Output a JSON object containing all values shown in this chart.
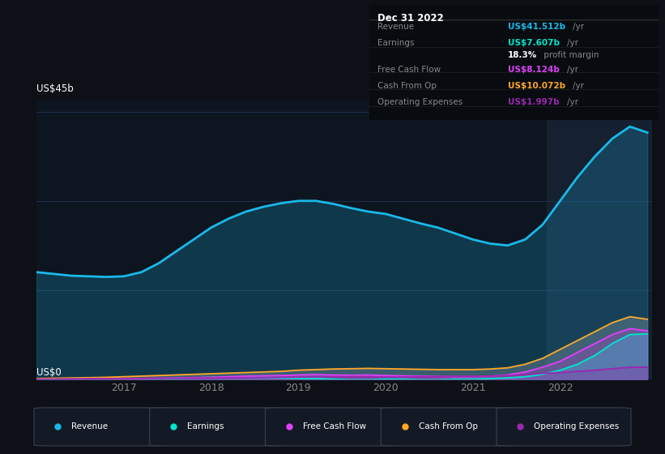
{
  "background_color": "#0d1117",
  "chart_bg_color": "#0d1520",
  "ylabel": "US$45b",
  "y0label": "US$0",
  "x_ticks": [
    "2017",
    "2018",
    "2019",
    "2020",
    "2021",
    "2022"
  ],
  "x_values": [
    2016.0,
    2016.2,
    2016.4,
    2016.6,
    2016.8,
    2017.0,
    2017.2,
    2017.4,
    2017.6,
    2017.8,
    2018.0,
    2018.2,
    2018.4,
    2018.6,
    2018.8,
    2019.0,
    2019.2,
    2019.4,
    2019.6,
    2019.8,
    2020.0,
    2020.2,
    2020.4,
    2020.6,
    2020.8,
    2021.0,
    2021.2,
    2021.4,
    2021.6,
    2021.8,
    2022.0,
    2022.2,
    2022.4,
    2022.6,
    2022.8,
    2023.0
  ],
  "revenue": [
    18.0,
    17.7,
    17.4,
    17.3,
    17.2,
    17.3,
    18.0,
    19.5,
    21.5,
    23.5,
    25.5,
    27.0,
    28.2,
    29.0,
    29.6,
    30.0,
    30.0,
    29.5,
    28.8,
    28.2,
    27.8,
    27.0,
    26.2,
    25.5,
    24.5,
    23.5,
    22.8,
    22.5,
    23.5,
    26.0,
    30.0,
    34.0,
    37.5,
    40.5,
    42.5,
    41.5
  ],
  "earnings": [
    -0.5,
    -0.4,
    -0.4,
    -0.3,
    -0.2,
    -0.1,
    0.0,
    0.1,
    0.1,
    0.2,
    0.3,
    0.3,
    0.3,
    0.3,
    0.2,
    0.1,
    0.1,
    0.0,
    -0.1,
    -0.1,
    0.0,
    0.0,
    -0.1,
    -0.1,
    0.0,
    0.0,
    0.1,
    0.2,
    0.4,
    0.8,
    1.5,
    2.5,
    4.0,
    6.0,
    7.5,
    7.607
  ],
  "free_cash_flow": [
    -0.3,
    -0.25,
    -0.2,
    -0.15,
    -0.1,
    0.0,
    0.1,
    0.15,
    0.2,
    0.25,
    0.3,
    0.4,
    0.5,
    0.55,
    0.6,
    0.7,
    0.75,
    0.7,
    0.65,
    0.7,
    0.6,
    0.55,
    0.5,
    0.45,
    0.4,
    0.4,
    0.5,
    0.7,
    1.2,
    2.0,
    3.0,
    4.5,
    6.0,
    7.5,
    8.5,
    8.124
  ],
  "cash_from_op": [
    0.1,
    0.15,
    0.2,
    0.25,
    0.3,
    0.4,
    0.5,
    0.6,
    0.7,
    0.8,
    0.9,
    1.0,
    1.1,
    1.2,
    1.3,
    1.5,
    1.6,
    1.7,
    1.75,
    1.8,
    1.75,
    1.7,
    1.65,
    1.6,
    1.6,
    1.6,
    1.7,
    1.9,
    2.5,
    3.5,
    5.0,
    6.5,
    8.0,
    9.5,
    10.5,
    10.072
  ],
  "operating_expenses": [
    0.0,
    0.02,
    0.05,
    0.07,
    0.08,
    0.1,
    0.12,
    0.13,
    0.15,
    0.17,
    0.2,
    0.22,
    0.25,
    0.28,
    0.3,
    0.32,
    0.35,
    0.38,
    0.4,
    0.38,
    0.35,
    0.38,
    0.4,
    0.42,
    0.45,
    0.48,
    0.52,
    0.6,
    0.75,
    0.95,
    1.1,
    1.3,
    1.5,
    1.75,
    2.0,
    1.997
  ],
  "revenue_color": "#1ab8e8",
  "earnings_color": "#00e5cc",
  "free_cash_flow_color": "#e040fb",
  "cash_from_op_color": "#ffa726",
  "operating_expenses_color": "#9c27b0",
  "grid_color": "#1e3050",
  "highlight_x_start": 2021.85,
  "highlight_x_end": 2023.05,
  "ylim": [
    0,
    47
  ],
  "xlim": [
    2016.0,
    2023.05
  ],
  "info_box": {
    "title": "Dec 31 2022",
    "rows": [
      {
        "label": "Revenue",
        "value": "US$41.512b",
        "unit": "/yr",
        "color": "#1ab8e8",
        "sep_above": true
      },
      {
        "label": "Earnings",
        "value": "US$7.607b",
        "unit": "/yr",
        "color": "#00e5cc",
        "sep_above": true
      },
      {
        "label": "",
        "value": "18.3%",
        "unit": " profit margin",
        "color": "#ffffff",
        "sep_above": false
      },
      {
        "label": "Free Cash Flow",
        "value": "US$8.124b",
        "unit": "/yr",
        "color": "#e040fb",
        "sep_above": true
      },
      {
        "label": "Cash From Op",
        "value": "US$10.072b",
        "unit": "/yr",
        "color": "#ffa726",
        "sep_above": true
      },
      {
        "label": "Operating Expenses",
        "value": "US$1.997b",
        "unit": "/yr",
        "color": "#9c27b0",
        "sep_above": true
      }
    ]
  },
  "legend_items": [
    {
      "label": "Revenue",
      "color": "#1ab8e8"
    },
    {
      "label": "Earnings",
      "color": "#00e5cc"
    },
    {
      "label": "Free Cash Flow",
      "color": "#e040fb"
    },
    {
      "label": "Cash From Op",
      "color": "#ffa726"
    },
    {
      "label": "Operating Expenses",
      "color": "#9c27b0"
    }
  ]
}
